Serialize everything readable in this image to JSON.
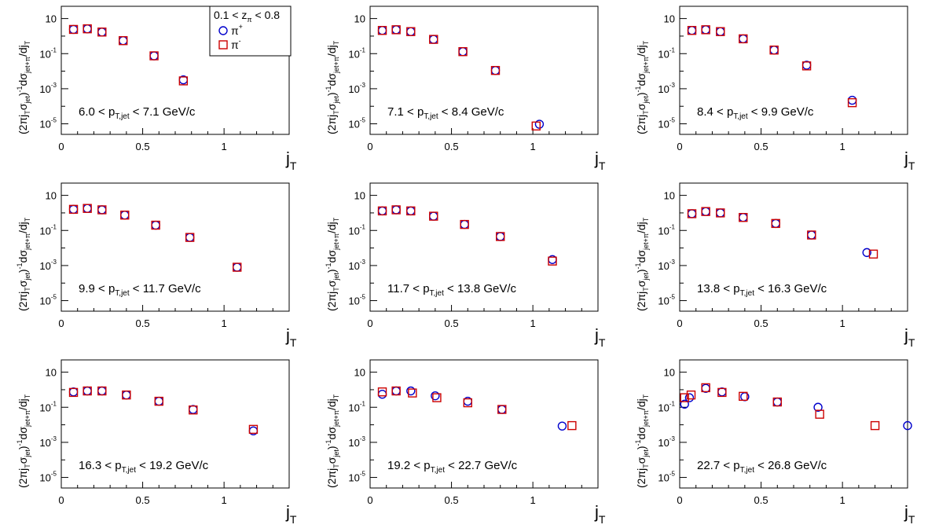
{
  "legend": {
    "header_main": "0.1 < z",
    "header_sub": "π",
    "header_end": " < 0.8",
    "entries": [
      {
        "base": "π",
        "sup": "+",
        "color": "#0000cc",
        "marker": "circle"
      },
      {
        "base": "π",
        "sup": "-",
        "color": "#cc0000",
        "marker": "square"
      }
    ]
  },
  "axis_text": {
    "xlabel_main": "j",
    "xlabel_sub": "T",
    "ylabel_a": "(2πj",
    "ylabel_b": "T",
    "ylabel_c": "σ",
    "ylabel_d": "jet",
    "ylabel_e": ")",
    "ylabel_f": "-1",
    "ylabel_g": "dσ",
    "ylabel_h": "jet+π",
    "ylabel_i": "/dj",
    "ylabel_j": "T",
    "label_pt": "p",
    "label_pt_sub": "T,jet",
    "label_unit": "GeV/c"
  },
  "colors": {
    "pi_plus": "#0000cc",
    "pi_minus": "#cc0000"
  },
  "chart_data": [
    {
      "type": "scatter",
      "ylog": true,
      "xlim": [
        0,
        1.4
      ],
      "ylim": [
        2.5e-06,
        50
      ],
      "xticks": [
        "0",
        "0.5",
        "1"
      ],
      "yticks": [
        "10",
        "10",
        "10",
        "10"
      ],
      "ytick_exp": [
        "",
        "-1",
        "-3",
        "-5"
      ],
      "range_lo": "6.0",
      "range_hi": "7.1",
      "series": [
        {
          "name": "π+",
          "x": [
            0.075,
            0.16,
            0.25,
            0.38,
            0.57,
            0.75
          ],
          "y": [
            2.4,
            2.6,
            1.7,
            0.55,
            0.075,
            0.0032
          ]
        },
        {
          "name": "π-",
          "x": [
            0.075,
            0.16,
            0.25,
            0.38,
            0.57,
            0.75
          ],
          "y": [
            2.4,
            2.6,
            1.7,
            0.55,
            0.075,
            0.0028
          ]
        }
      ]
    },
    {
      "type": "scatter",
      "ylog": true,
      "xlim": [
        0,
        1.4
      ],
      "ylim": [
        2.5e-06,
        50
      ],
      "xticks": [
        "0",
        "0.5",
        "1"
      ],
      "yticks": [
        "10",
        "10",
        "10",
        "10"
      ],
      "ytick_exp": [
        "",
        "-1",
        "-3",
        "-5"
      ],
      "range_lo": "7.1",
      "range_hi": "8.4",
      "series": [
        {
          "name": "π+",
          "x": [
            0.075,
            0.16,
            0.25,
            0.39,
            0.57,
            0.77,
            1.04
          ],
          "y": [
            2.1,
            2.3,
            1.8,
            0.65,
            0.13,
            0.011,
            9.5e-06
          ]
        },
        {
          "name": "π-",
          "x": [
            0.075,
            0.16,
            0.25,
            0.39,
            0.57,
            0.77,
            1.02
          ],
          "y": [
            2.1,
            2.3,
            1.8,
            0.65,
            0.13,
            0.011,
            7.5e-06
          ]
        }
      ]
    },
    {
      "type": "scatter",
      "ylog": true,
      "xlim": [
        0,
        1.4
      ],
      "ylim": [
        2.5e-06,
        50
      ],
      "xticks": [
        "0",
        "0.5",
        "1"
      ],
      "yticks": [
        "10",
        "10",
        "10",
        "10"
      ],
      "ytick_exp": [
        "",
        "-1",
        "-3",
        "-5"
      ],
      "range_lo": "8.4",
      "range_hi": "9.9",
      "series": [
        {
          "name": "π+",
          "x": [
            0.075,
            0.16,
            0.25,
            0.39,
            0.58,
            0.78,
            1.06
          ],
          "y": [
            2.1,
            2.3,
            1.8,
            0.7,
            0.16,
            0.022,
            0.00022
          ]
        },
        {
          "name": "π-",
          "x": [
            0.075,
            0.16,
            0.25,
            0.39,
            0.58,
            0.78,
            1.06
          ],
          "y": [
            2.1,
            2.3,
            1.8,
            0.7,
            0.16,
            0.02,
            0.00016
          ]
        }
      ]
    },
    {
      "type": "scatter",
      "ylog": true,
      "xlim": [
        0,
        1.4
      ],
      "ylim": [
        2.5e-06,
        50
      ],
      "xticks": [
        "0",
        "0.5",
        "1"
      ],
      "yticks": [
        "10",
        "10",
        "10",
        "10"
      ],
      "ytick_exp": [
        "",
        "-1",
        "-3",
        "-5"
      ],
      "range_lo": "9.9",
      "range_hi": "11.7",
      "series": [
        {
          "name": "π+",
          "x": [
            0.075,
            0.16,
            0.25,
            0.39,
            0.58,
            0.79,
            1.08
          ],
          "y": [
            1.6,
            1.8,
            1.5,
            0.75,
            0.2,
            0.04,
            0.0008
          ]
        },
        {
          "name": "π-",
          "x": [
            0.075,
            0.16,
            0.25,
            0.39,
            0.58,
            0.79,
            1.08
          ],
          "y": [
            1.6,
            1.8,
            1.5,
            0.75,
            0.2,
            0.04,
            0.0008
          ]
        }
      ]
    },
    {
      "type": "scatter",
      "ylog": true,
      "xlim": [
        0,
        1.4
      ],
      "ylim": [
        2.5e-06,
        50
      ],
      "xticks": [
        "0",
        "0.5",
        "1"
      ],
      "yticks": [
        "10",
        "10",
        "10",
        "10"
      ],
      "ytick_exp": [
        "",
        "-1",
        "-3",
        "-5"
      ],
      "range_lo": "11.7",
      "range_hi": "13.8",
      "series": [
        {
          "name": "π+",
          "x": [
            0.075,
            0.16,
            0.25,
            0.39,
            0.58,
            0.8,
            1.12
          ],
          "y": [
            1.3,
            1.5,
            1.3,
            0.65,
            0.22,
            0.045,
            0.0022
          ]
        },
        {
          "name": "π-",
          "x": [
            0.075,
            0.16,
            0.25,
            0.39,
            0.58,
            0.8,
            1.12
          ],
          "y": [
            1.3,
            1.5,
            1.3,
            0.65,
            0.22,
            0.045,
            0.0018
          ]
        }
      ]
    },
    {
      "type": "scatter",
      "ylog": true,
      "xlim": [
        0,
        1.4
      ],
      "ylim": [
        2.5e-06,
        50
      ],
      "xticks": [
        "0",
        "0.5",
        "1"
      ],
      "yticks": [
        "10",
        "10",
        "10",
        "10"
      ],
      "ytick_exp": [
        "",
        "-1",
        "-3",
        "-5"
      ],
      "range_lo": "13.8",
      "range_hi": "16.3",
      "series": [
        {
          "name": "π+",
          "x": [
            0.075,
            0.16,
            0.25,
            0.39,
            0.59,
            0.81,
            1.15
          ],
          "y": [
            0.9,
            1.2,
            1.0,
            0.55,
            0.25,
            0.055,
            0.0055
          ]
        },
        {
          "name": "π-",
          "x": [
            0.075,
            0.16,
            0.25,
            0.39,
            0.59,
            0.81,
            1.19
          ],
          "y": [
            0.9,
            1.2,
            1.0,
            0.55,
            0.25,
            0.055,
            0.0045
          ]
        }
      ]
    },
    {
      "type": "scatter",
      "ylog": true,
      "xlim": [
        0,
        1.4
      ],
      "ylim": [
        2.5e-06,
        50
      ],
      "xticks": [
        "0",
        "0.5",
        "1"
      ],
      "yticks": [
        "10",
        "10",
        "10",
        "10"
      ],
      "ytick_exp": [
        "",
        "-1",
        "-3",
        "-5"
      ],
      "range_lo": "16.3",
      "range_hi": "19.2",
      "series": [
        {
          "name": "π+",
          "x": [
            0.075,
            0.16,
            0.25,
            0.4,
            0.6,
            0.81,
            1.18
          ],
          "y": [
            0.75,
            0.85,
            0.85,
            0.5,
            0.22,
            0.075,
            0.0045
          ]
        },
        {
          "name": "π-",
          "x": [
            0.075,
            0.16,
            0.25,
            0.4,
            0.6,
            0.81,
            1.18
          ],
          "y": [
            0.7,
            0.85,
            0.85,
            0.5,
            0.22,
            0.07,
            0.0055
          ]
        }
      ]
    },
    {
      "type": "scatter",
      "ylog": true,
      "xlim": [
        0,
        1.4
      ],
      "ylim": [
        2.5e-06,
        50
      ],
      "xticks": [
        "0",
        "0.5",
        "1"
      ],
      "yticks": [
        "10",
        "10",
        "10",
        "10"
      ],
      "ytick_exp": [
        "",
        "-1",
        "-3",
        "-5"
      ],
      "range_lo": "19.2",
      "range_hi": "22.7",
      "series": [
        {
          "name": "π+",
          "x": [
            0.075,
            0.16,
            0.25,
            0.4,
            0.6,
            0.81,
            1.18
          ],
          "y": [
            0.55,
            0.85,
            0.85,
            0.45,
            0.22,
            0.075,
            0.0085
          ]
        },
        {
          "name": "π-",
          "x": [
            0.075,
            0.16,
            0.26,
            0.41,
            0.6,
            0.81,
            1.24
          ],
          "y": [
            0.75,
            0.85,
            0.65,
            0.35,
            0.18,
            0.075,
            0.009
          ]
        }
      ]
    },
    {
      "type": "scatter",
      "ylog": true,
      "xlim": [
        0,
        1.4
      ],
      "ylim": [
        2.5e-06,
        50
      ],
      "xticks": [
        "0",
        "0.5",
        "1"
      ],
      "yticks": [
        "10",
        "10",
        "10",
        "10"
      ],
      "ytick_exp": [
        "",
        "-1",
        "-3",
        "-5"
      ],
      "range_lo": "22.7",
      "range_hi": "26.8",
      "series": [
        {
          "name": "π+",
          "x": [
            0.03,
            0.06,
            0.16,
            0.26,
            0.4,
            0.6,
            0.85,
            1.4
          ],
          "y": [
            0.15,
            0.35,
            1.2,
            0.75,
            0.4,
            0.2,
            0.1,
            0.009
          ]
        },
        {
          "name": "π-",
          "x": [
            0.03,
            0.07,
            0.16,
            0.26,
            0.39,
            0.6,
            0.86,
            1.2
          ],
          "y": [
            0.35,
            0.5,
            1.3,
            0.7,
            0.42,
            0.2,
            0.04,
            0.009
          ]
        }
      ]
    }
  ]
}
